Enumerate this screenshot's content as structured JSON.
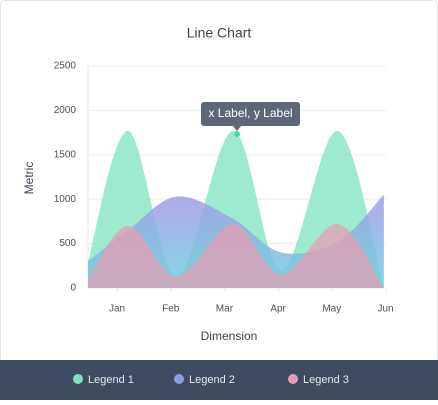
{
  "chart_data": {
    "type": "area",
    "title": "Line Chart",
    "x_label": "Dimension",
    "y_label": "Metric",
    "tooltip": "x Label, y Label",
    "x": [
      0.45,
      1.2,
      2.1,
      3.15,
      4.05,
      5.1,
      5.96
    ],
    "xlim": [
      0.45,
      6.0
    ],
    "xticks": [
      {
        "value": 1,
        "label": "Jan"
      },
      {
        "value": 2,
        "label": "Feb"
      },
      {
        "value": 3,
        "label": "Mar"
      },
      {
        "value": 4,
        "label": "Apr"
      },
      {
        "value": 5,
        "label": "May"
      },
      {
        "value": 6,
        "label": "Jun"
      }
    ],
    "ylim": [
      0,
      2500
    ],
    "yticks": [
      0,
      500,
      1000,
      1500,
      2000,
      2500
    ],
    "grid": true,
    "series": [
      {
        "name": "Legend 1",
        "color": "#7de3bd",
        "values": [
          300,
          1770,
          130,
          1770,
          200,
          1770,
          0
        ]
      },
      {
        "name": "Legend 2",
        "color": "#8a9ee0",
        "values": [
          300,
          650,
          1030,
          780,
          400,
          520,
          1050
        ]
      },
      {
        "name": "Legend 3",
        "color": "#e59db3",
        "values": [
          100,
          700,
          130,
          720,
          150,
          720,
          0
        ]
      }
    ]
  }
}
